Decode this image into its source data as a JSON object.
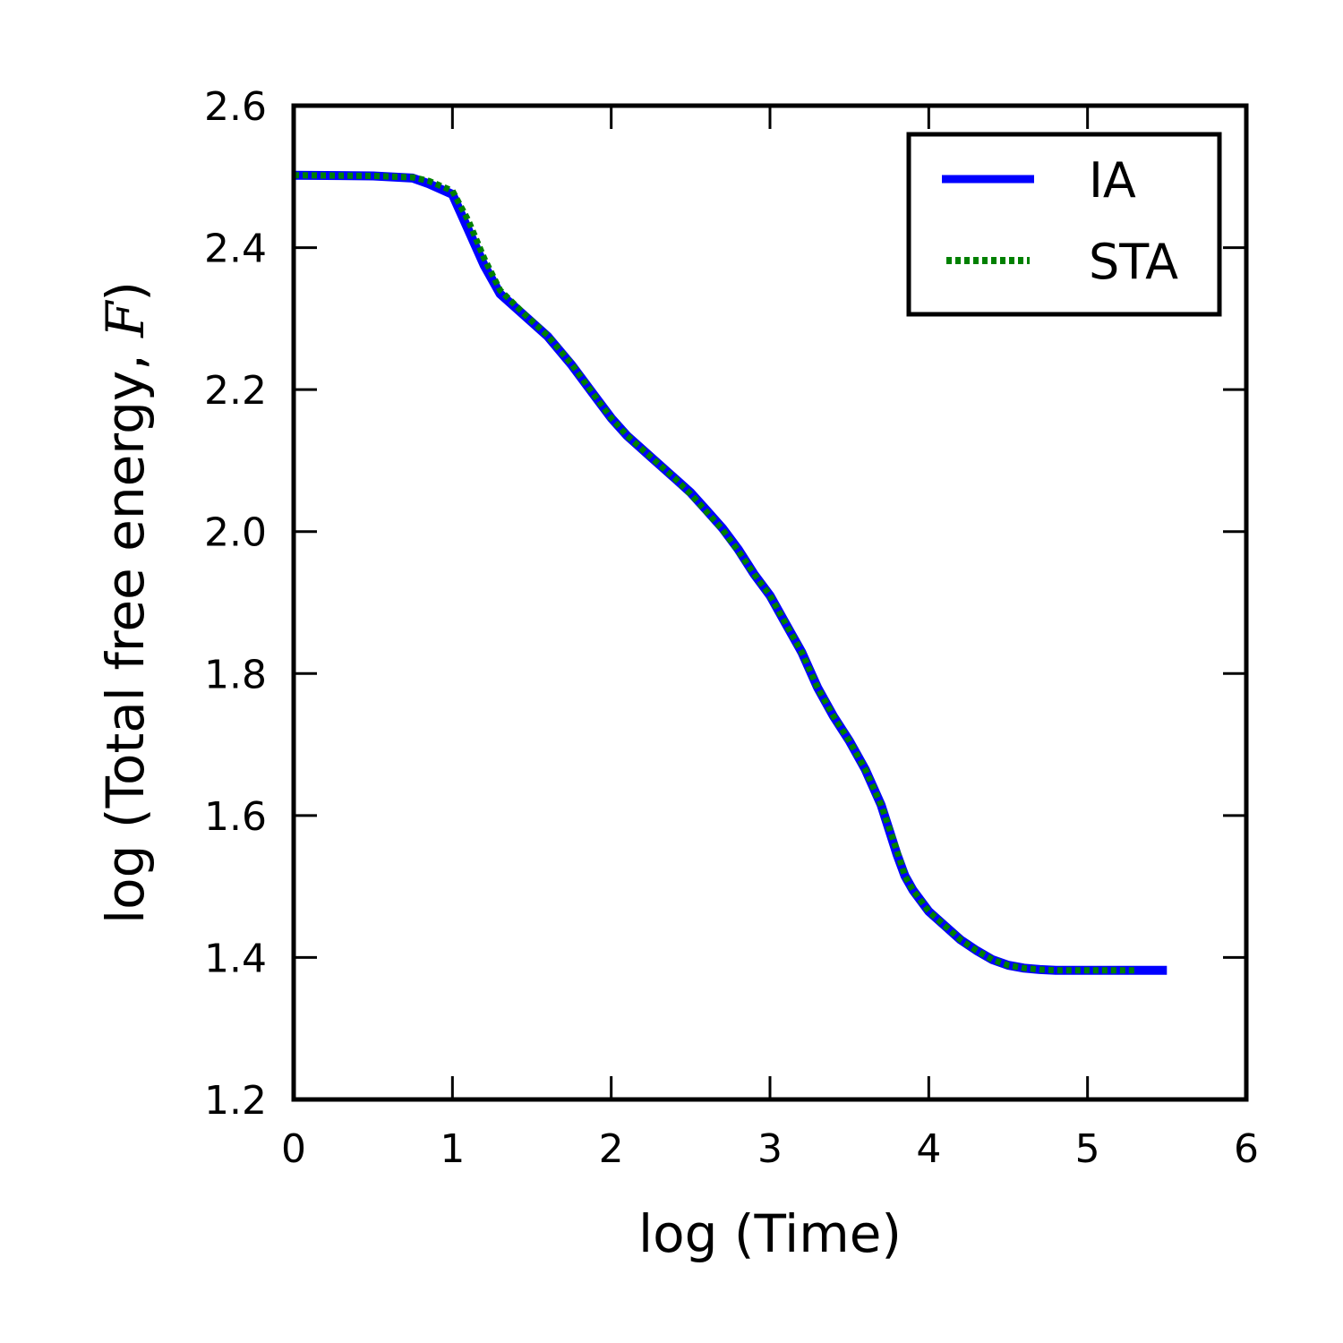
{
  "chart_data": {
    "type": "line",
    "xlabel": "log (Time)",
    "ylabel": "log (Total free energy, ",
    "ylabel_var": "F",
    "ylabel_end": ")",
    "xlim": [
      0,
      6
    ],
    "ylim": [
      1.2,
      2.6
    ],
    "xticks": [
      0,
      1,
      2,
      3,
      4,
      5,
      6
    ],
    "xtick_labels": [
      "0",
      "1",
      "2",
      "3",
      "4",
      "5",
      "6"
    ],
    "yticks": [
      1.2,
      1.4,
      1.6,
      1.8,
      2.0,
      2.2,
      2.4,
      2.6
    ],
    "ytick_labels": [
      "1.2",
      "1.4",
      "1.6",
      "1.8",
      "2.0",
      "2.2",
      "2.4",
      "2.6"
    ],
    "grid": false,
    "legend_position": "top-right",
    "series": [
      {
        "name": "IA",
        "color": "#0000ff",
        "style": "solid",
        "x": [
          0,
          0.5,
          0.75,
          0.85,
          1.0,
          1.1,
          1.2,
          1.3,
          1.45,
          1.6,
          1.75,
          1.9,
          2.0,
          2.1,
          2.25,
          2.4,
          2.5,
          2.6,
          2.7,
          2.8,
          2.9,
          3.0,
          3.1,
          3.2,
          3.3,
          3.4,
          3.5,
          3.6,
          3.7,
          3.75,
          3.8,
          3.85,
          3.9,
          4.0,
          4.1,
          4.2,
          4.3,
          4.4,
          4.5,
          4.6,
          4.7,
          4.8,
          5.0,
          5.2,
          5.5
        ],
        "y": [
          2.502,
          2.501,
          2.498,
          2.49,
          2.475,
          2.425,
          2.375,
          2.335,
          2.305,
          2.275,
          2.235,
          2.19,
          2.16,
          2.135,
          2.105,
          2.075,
          2.055,
          2.03,
          2.005,
          1.975,
          1.94,
          1.91,
          1.87,
          1.83,
          1.78,
          1.74,
          1.705,
          1.665,
          1.615,
          1.58,
          1.545,
          1.515,
          1.495,
          1.465,
          1.445,
          1.425,
          1.41,
          1.397,
          1.389,
          1.385,
          1.383,
          1.382,
          1.382,
          1.382,
          1.382
        ]
      },
      {
        "name": "STA",
        "color": "#008000",
        "style": "dotted",
        "x": [
          0,
          0.5,
          0.75,
          0.85,
          1.0,
          1.1,
          1.2,
          1.3,
          1.45,
          1.6,
          1.75,
          1.9,
          2.0,
          2.1,
          2.25,
          2.4,
          2.5,
          2.6,
          2.7,
          2.8,
          2.9,
          3.0,
          3.1,
          3.2,
          3.3,
          3.4,
          3.5,
          3.6,
          3.7,
          3.75,
          3.8,
          3.85,
          3.9,
          4.0,
          4.1,
          4.2,
          4.3,
          4.4,
          4.5,
          4.6,
          4.7,
          4.8,
          5.0,
          5.2,
          5.3
        ],
        "y": [
          2.502,
          2.501,
          2.499,
          2.494,
          2.48,
          2.438,
          2.385,
          2.34,
          2.307,
          2.276,
          2.236,
          2.19,
          2.16,
          2.135,
          2.105,
          2.075,
          2.053,
          2.028,
          2.003,
          1.973,
          1.94,
          1.91,
          1.87,
          1.83,
          1.78,
          1.74,
          1.705,
          1.665,
          1.615,
          1.583,
          1.55,
          1.515,
          1.495,
          1.465,
          1.445,
          1.425,
          1.41,
          1.397,
          1.389,
          1.385,
          1.383,
          1.382,
          1.382,
          1.382,
          1.382
        ]
      }
    ]
  }
}
